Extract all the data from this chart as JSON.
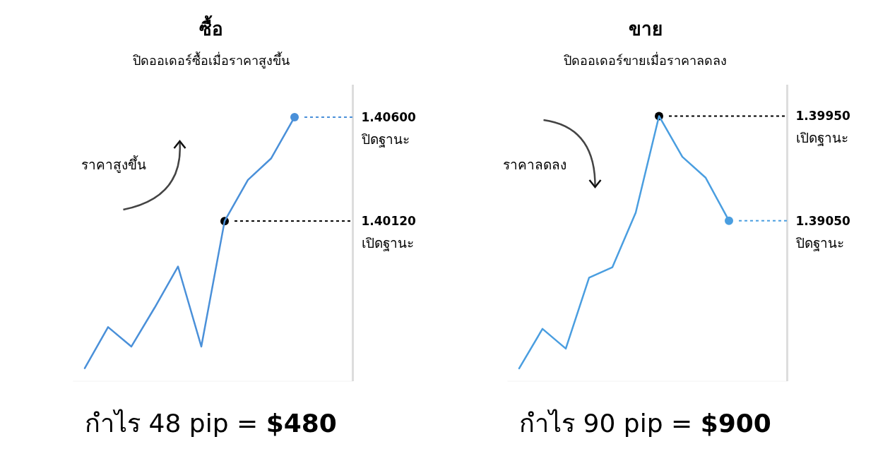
{
  "chart_data": [
    {
      "type": "line",
      "title": "ซื้อ",
      "subtitle": "ปิดออเดอร์ซื้อเมื่อราคาสูงขึ้น",
      "categories": [
        null,
        null,
        null,
        null,
        null,
        null,
        null,
        null,
        null,
        null,
        null,
        null
      ],
      "ylim": [
        1.3938,
        1.4075
      ],
      "yticks": [
        {
          "value": 1.4012,
          "label": "1.40120"
        },
        {
          "value": 1.406,
          "label": "1.40600"
        }
      ],
      "series": [
        {
          "color": "#4a90d9",
          "values": [
            1.3944,
            1.3963,
            1.3954,
            1.3972,
            1.3991,
            1.3954,
            1.4012,
            1.4031,
            1.4041,
            1.406,
            null,
            null
          ]
        }
      ],
      "annotations": [
        "ราคาสูงขึ้น",
        "เปิดฐานะ",
        "ปิดฐานะ",
        "กำไร 48 pip = **$480**"
      ]
    },
    {
      "type": "line",
      "title": "ขาย",
      "subtitle": "ปิดออเดอร์ขายเมื่อราคาลดลง",
      "categories": [
        null,
        null,
        null,
        null,
        null,
        null,
        null,
        null,
        null,
        null,
        null,
        null
      ],
      "ylim": [
        1.3767,
        1.4022
      ],
      "yticks": [
        {
          "value": 1.3995,
          "label": "1.39950"
        },
        {
          "value": 1.3905,
          "label": "1.39050"
        }
      ],
      "series": [
        {
          "color": "#4a9ee0",
          "values": [
            1.3778,
            1.3812,
            1.3795,
            1.3856,
            1.3865,
            1.3912,
            1.3995,
            1.396,
            1.3942,
            1.3905,
            null,
            null
          ]
        }
      ],
      "annotations": [
        "ราคาลดลง",
        "เปิดฐานะ",
        "ปิดฐานะ",
        "กำไร 90 pip = **$900**"
      ]
    }
  ]
}
